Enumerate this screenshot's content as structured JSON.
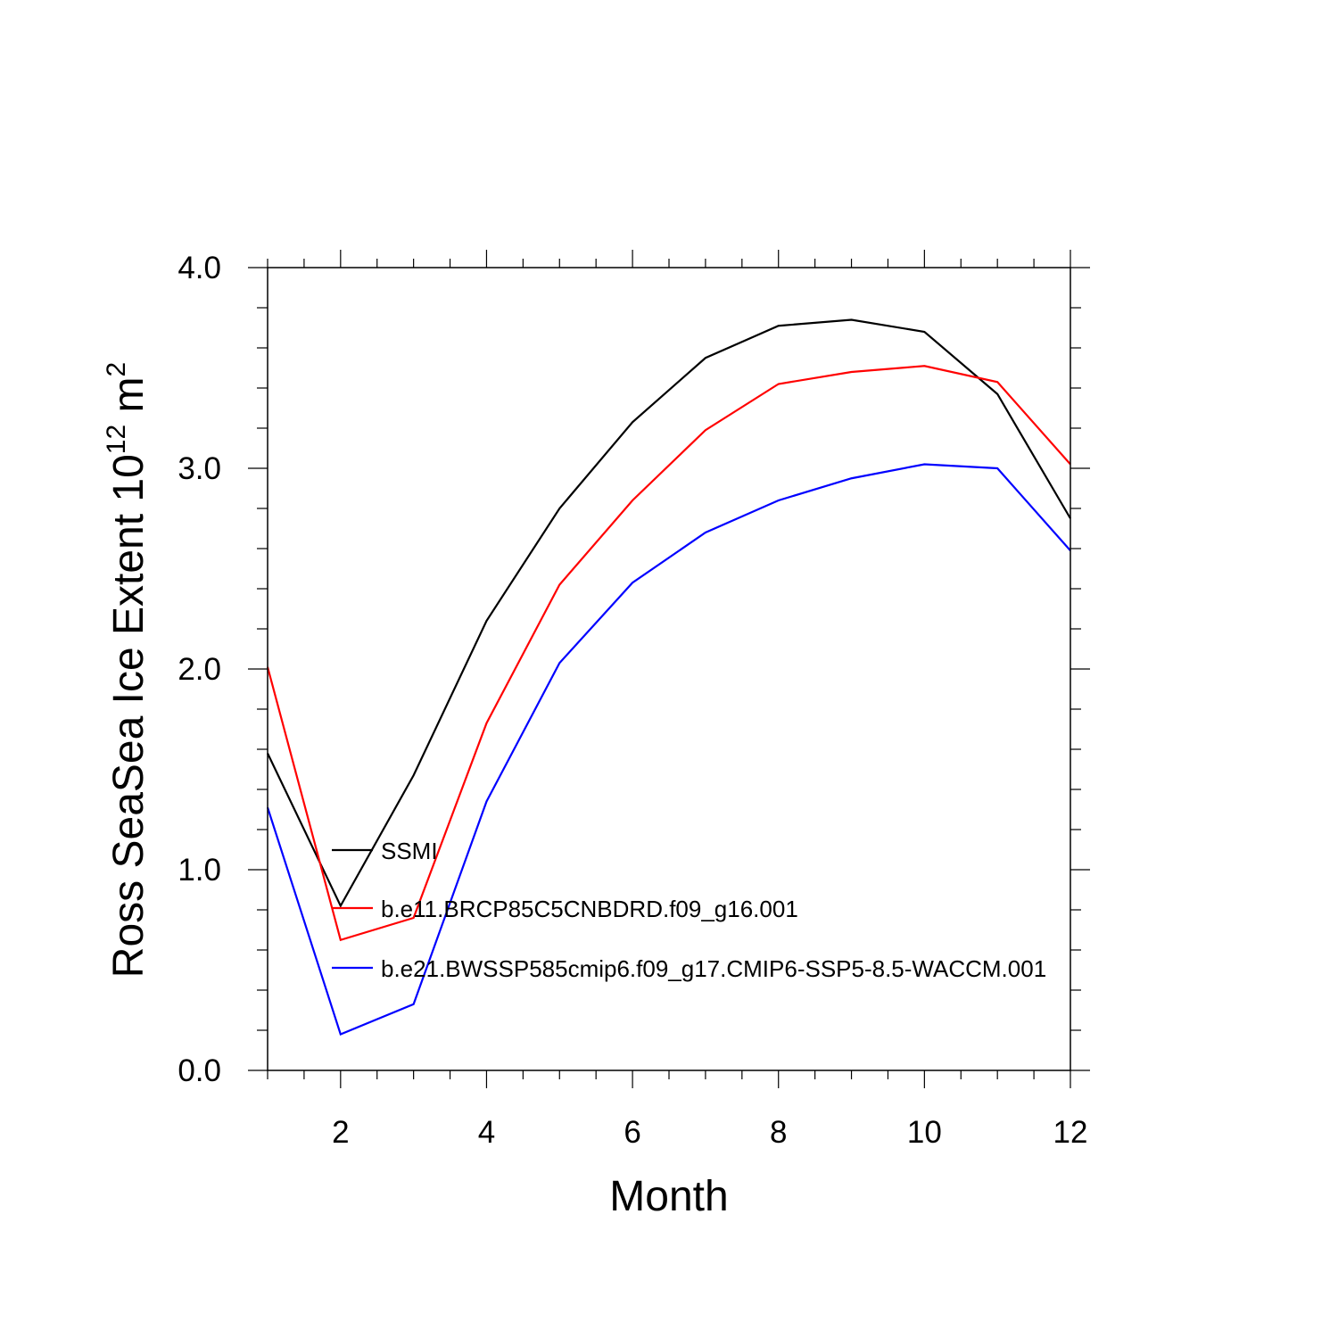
{
  "chart_data": {
    "type": "line",
    "title": "",
    "xlabel": "Month",
    "ylabel": {
      "text": "Ross SeaSea Ice Extent 10",
      "exponent": "12",
      "unit": " m",
      "unit_exponent": "2"
    },
    "xlim": [
      1,
      12
    ],
    "ylim": [
      0.0,
      4.0
    ],
    "x_ticks": [
      2,
      4,
      6,
      8,
      10,
      12
    ],
    "x_tick_labels": [
      "2",
      "4",
      "6",
      "8",
      "10",
      "12"
    ],
    "y_ticks": [
      0.0,
      1.0,
      2.0,
      3.0,
      4.0
    ],
    "y_tick_labels": [
      "0.0",
      "1.0",
      "2.0",
      "3.0",
      "4.0"
    ],
    "grid": false,
    "legend_position": "lower-left inside",
    "x": [
      1,
      2,
      3,
      4,
      5,
      6,
      7,
      8,
      9,
      10,
      11,
      12
    ],
    "series": [
      {
        "name": "SSMI",
        "color": "#000000",
        "values": [
          1.58,
          0.82,
          1.47,
          2.24,
          2.8,
          3.23,
          3.55,
          3.71,
          3.74,
          3.68,
          3.37,
          2.75
        ]
      },
      {
        "name": "b.e11.BRCP85C5CNBDRD.f09_g16.001",
        "color": "#ff0000",
        "values": [
          2.01,
          0.65,
          0.76,
          1.73,
          2.42,
          2.84,
          3.19,
          3.42,
          3.48,
          3.51,
          3.43,
          3.02
        ]
      },
      {
        "name": "b.e21.BWSSP585cmip6.f09_g17.CMIP6-SSP5-8.5-WACCM.001",
        "color": "#0000ff",
        "values": [
          1.31,
          0.18,
          0.33,
          1.34,
          2.03,
          2.43,
          2.68,
          2.84,
          2.95,
          3.02,
          3.0,
          2.59
        ]
      }
    ]
  }
}
